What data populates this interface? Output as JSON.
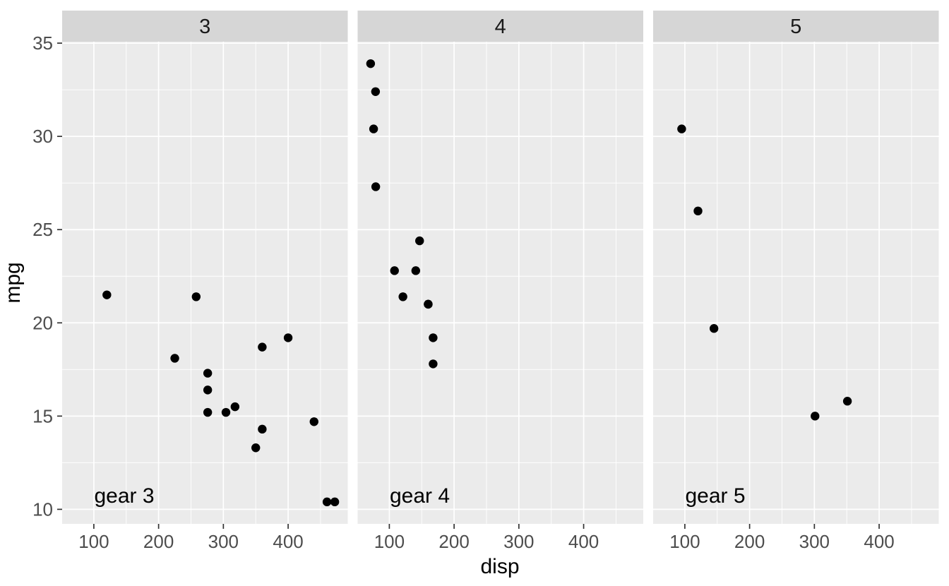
{
  "chart_data": {
    "type": "scatter",
    "title": "",
    "xlabel": "disp",
    "ylabel": "mpg",
    "faceting_variable_values": [
      "3",
      "4",
      "5"
    ],
    "xlim": [
      51.06,
      492.05
    ],
    "ylim": [
      9.22,
      35.08
    ],
    "x_ticks": [
      100,
      200,
      300,
      400
    ],
    "y_ticks": [
      10,
      15,
      20,
      25,
      30,
      35
    ],
    "x_minor_ticks": [
      150,
      250,
      350,
      450
    ],
    "y_minor_ticks": [
      12.5,
      17.5,
      22.5,
      27.5,
      32.5
    ],
    "grid": "white major and minor gridlines on gray panel",
    "legend": "none",
    "colors": {
      "panel_background": "#EBEBEB",
      "strip_background": "#D6D6D6",
      "gridline": "#FFFFFF",
      "point": "#000000",
      "tick_label": "#4D4D4D",
      "tick_mark": "#333333",
      "title_text": "#000000",
      "strip_text": "#1A1A1A"
    },
    "facets": [
      {
        "strip_label": "3",
        "annotation": {
          "text": "gear 3",
          "x": 147,
          "y": 10.75
        },
        "points": [
          [
            120.1,
            21.5
          ],
          [
            258.0,
            21.4
          ],
          [
            225.0,
            18.1
          ],
          [
            360.0,
            18.7
          ],
          [
            400.0,
            19.2
          ],
          [
            275.8,
            17.3
          ],
          [
            275.8,
            16.4
          ],
          [
            275.8,
            15.2
          ],
          [
            304.0,
            15.2
          ],
          [
            318.0,
            15.5
          ],
          [
            360.0,
            14.3
          ],
          [
            350.0,
            13.3
          ],
          [
            440.0,
            14.7
          ],
          [
            460.0,
            10.4
          ],
          [
            472.0,
            10.4
          ]
        ]
      },
      {
        "strip_label": "4",
        "annotation": {
          "text": "gear 4",
          "x": 147,
          "y": 10.75
        },
        "points": [
          [
            71.1,
            33.9
          ],
          [
            78.7,
            32.4
          ],
          [
            75.7,
            30.4
          ],
          [
            79.0,
            27.3
          ],
          [
            146.7,
            24.4
          ],
          [
            108.0,
            22.8
          ],
          [
            140.8,
            22.8
          ],
          [
            121.0,
            21.4
          ],
          [
            160.0,
            21.0
          ],
          [
            160.0,
            21.0
          ],
          [
            167.6,
            19.2
          ],
          [
            167.6,
            17.8
          ]
        ]
      },
      {
        "strip_label": "5",
        "annotation": {
          "text": "gear 5",
          "x": 147,
          "y": 10.75
        },
        "points": [
          [
            95.1,
            30.4
          ],
          [
            120.3,
            26.0
          ],
          [
            145.0,
            19.7
          ],
          [
            301.0,
            15.0
          ],
          [
            351.0,
            15.8
          ]
        ]
      }
    ]
  }
}
